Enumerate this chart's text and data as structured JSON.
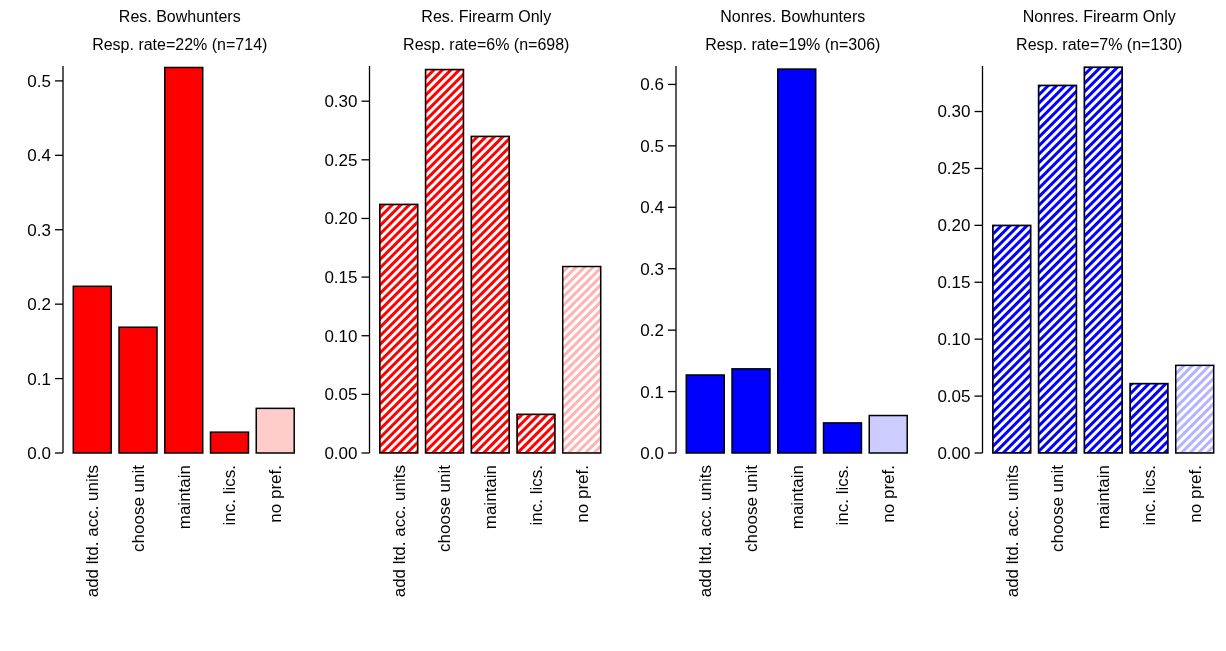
{
  "chart_data": [
    {
      "type": "bar",
      "title": "Res. Bowhunters",
      "subtitle": "Resp. rate=22% (n=714)",
      "categories": [
        "add ltd. acc. units",
        "choose unit",
        "maintain",
        "inc. lics.",
        "no pref."
      ],
      "values": [
        0.224,
        0.169,
        0.518,
        0.028,
        0.06
      ],
      "colors": [
        "#ff0000",
        "#ff0000",
        "#ff0000",
        "#ff0000",
        "#ffcccc"
      ],
      "ylim": [
        0,
        0.52
      ],
      "yticks": [
        {
          "value": 0,
          "label": "0.0"
        },
        0.1,
        0.2,
        0.3,
        0.4,
        0.5
      ],
      "grid": false
    },
    {
      "type": "bar",
      "title": "Res. Firearm Only",
      "subtitle": "Resp. rate=6% (n=698)",
      "categories": [
        "add ltd. acc. units",
        "choose unit",
        "maintain",
        "inc. lics.",
        "no pref."
      ],
      "values": [
        0.212,
        0.327,
        0.27,
        0.033,
        0.159
      ],
      "colors": [
        "#ff0000",
        "#ff0000",
        "#ff0000",
        "#ff0000",
        "#ffb3b3"
      ],
      "ylim": [
        0,
        0.33
      ],
      "yticks": [
        {
          "value": 0,
          "label": "0.00"
        },
        {
          "value": 0.05,
          "label": "0.05"
        },
        {
          "value": 0.1,
          "label": "0.10"
        },
        {
          "value": 0.15,
          "label": "0.15"
        },
        {
          "value": 0.2,
          "label": "0.20"
        },
        {
          "value": 0.25,
          "label": "0.25"
        },
        {
          "value": 0.3,
          "label": "0.30"
        }
      ],
      "grid": false
    },
    {
      "type": "bar",
      "title": "Nonres. Bowhunters",
      "subtitle": "Resp. rate=19% (n=306)",
      "categories": [
        "add ltd. acc. units",
        "choose unit",
        "maintain",
        "inc. lics.",
        "no pref."
      ],
      "values": [
        0.127,
        0.137,
        0.625,
        0.049,
        0.061
      ],
      "colors": [
        "#0000ff",
        "#0000ff",
        "#0000ff",
        "#0000ff",
        "#ccccff"
      ],
      "ylim": [
        0,
        0.63
      ],
      "yticks": [
        {
          "value": 0,
          "label": "0.0"
        },
        0.1,
        0.2,
        0.3,
        0.4,
        0.5,
        0.6
      ],
      "grid": false
    },
    {
      "type": "bar",
      "title": "Nonres. Firearm Only",
      "subtitle": "Resp. rate=7% (n=130)",
      "categories": [
        "add ltd. acc. units",
        "choose unit",
        "maintain",
        "inc. lics.",
        "no pref."
      ],
      "values": [
        0.2,
        0.323,
        0.339,
        0.061,
        0.077
      ],
      "colors": [
        "#0000ff",
        "#0000ff",
        "#0000ff",
        "#0000ff",
        "#b3b3ff"
      ],
      "ylim": [
        0,
        0.34
      ],
      "yticks": [
        {
          "value": 0,
          "label": "0.00"
        },
        {
          "value": 0.05,
          "label": "0.05"
        },
        {
          "value": 0.1,
          "label": "0.10"
        },
        {
          "value": 0.15,
          "label": "0.15"
        },
        {
          "value": 0.2,
          "label": "0.20"
        },
        {
          "value": 0.25,
          "label": "0.25"
        },
        {
          "value": 0.3,
          "label": "0.30"
        }
      ],
      "grid": false
    }
  ]
}
